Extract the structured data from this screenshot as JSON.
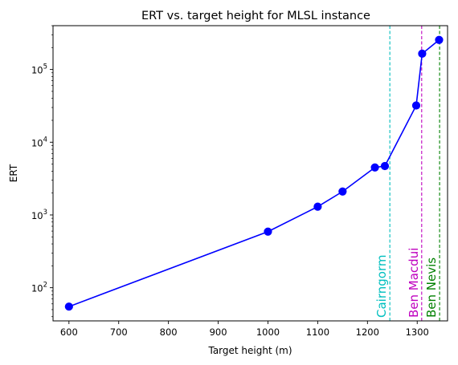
{
  "chart_data": {
    "type": "line",
    "title": "ERT vs. target height for MLSL instance",
    "xlabel": "Target height (m)",
    "ylabel": "ERT",
    "y_scale": "log",
    "xlim": [
      568,
      1361
    ],
    "ylim": [
      35,
      400000
    ],
    "x_ticks": [
      600,
      700,
      800,
      900,
      1000,
      1100,
      1200,
      1300
    ],
    "y_ticks": [
      {
        "value": 100,
        "base": "10",
        "exp": "2"
      },
      {
        "value": 1000,
        "base": "10",
        "exp": "3"
      },
      {
        "value": 10000,
        "base": "10",
        "exp": "4"
      },
      {
        "value": 100000,
        "base": "10",
        "exp": "5"
      }
    ],
    "series": [
      {
        "color": "#0000ff",
        "x": [
          600,
          1000,
          1100,
          1150,
          1215,
          1235,
          1298,
          1310,
          1344
        ],
        "y": [
          55,
          590,
          1300,
          2100,
          4500,
          4700,
          32000,
          165000,
          255000
        ]
      }
    ],
    "reference_lines": [
      {
        "x": 1245,
        "label": "Cairngorm",
        "color": "#00bfbf"
      },
      {
        "x": 1309,
        "label": "Ben Macdui",
        "color": "#bf00bf"
      },
      {
        "x": 1345,
        "label": "Ben Nevis",
        "color": "#008000"
      }
    ]
  }
}
